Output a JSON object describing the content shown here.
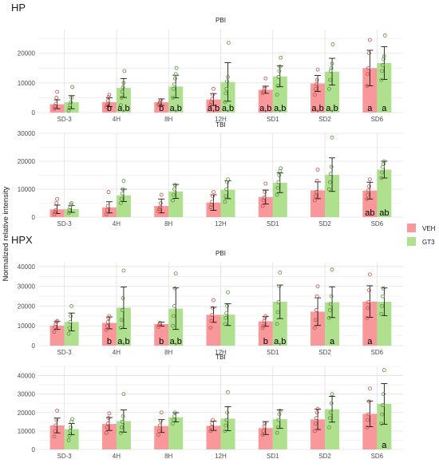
{
  "figure": {
    "ylabel": "Normalized relative intensity",
    "legend": {
      "placement": "right"
    }
  },
  "colors": {
    "VEH": "#f8989a",
    "GT3": "#aee08e"
  },
  "chart_data": [
    {
      "type": "bar",
      "group": "HP",
      "panel": "PBI",
      "categories": [
        "SD-3",
        "4H",
        "8H",
        "12H",
        "SD1",
        "SD2",
        "SD6"
      ],
      "ylim": [
        0,
        28000
      ],
      "yticks": [
        0,
        10000,
        20000
      ],
      "series": [
        {
          "name": "VEH",
          "values": [
            2800,
            3500,
            3500,
            4400,
            7700,
            9800,
            15000
          ],
          "err": [
            1500,
            1500,
            1100,
            2000,
            1200,
            2700,
            6000
          ],
          "points": [
            [
              1300,
              2200,
              3000,
              5000,
              7000
            ],
            [
              1800,
              2500,
              4000,
              5200,
              6000
            ],
            [
              2500,
              3000,
              3500,
              4200
            ],
            [
              2600,
              3500,
              4500,
              6000,
              8000
            ],
            [
              6500,
              7000,
              8000,
              8500,
              11500
            ],
            [
              6000,
              8000,
              9500,
              11000,
              14500
            ],
            [
              9000,
              13000,
              15000,
              20000,
              24500
            ]
          ]
        },
        {
          "name": "GT3",
          "values": [
            3500,
            8300,
            8800,
            10300,
            12200,
            13800,
            16700
          ],
          "err": [
            2200,
            3200,
            3800,
            6500,
            3500,
            4500,
            5500
          ],
          "points": [
            [
              600,
              1500,
              2500,
              3500,
              5000,
              8600
            ],
            [
              2500,
              5000,
              7000,
              8500,
              10000,
              14000
            ],
            [
              5000,
              8000,
              9500,
              11500,
              13000,
              15000
            ],
            [
              3500,
              6500,
              8000,
              10500,
              12000,
              23500
            ],
            [
              6000,
              9000,
              12000,
              14000,
              15500,
              18500
            ],
            [
              8000,
              11000,
              14000,
              15000,
              16500,
              23000
            ],
            [
              11000,
              14000,
              16000,
              18000,
              19000,
              26000
            ]
          ]
        }
      ],
      "labels": {
        "VEH": [
          "",
          "b",
          "b",
          "a,b",
          "a,b",
          "a,b",
          "a"
        ],
        "GT3": [
          "",
          "a,b",
          "a,b",
          "a,b",
          "a,b",
          "a,b",
          "a"
        ]
      }
    },
    {
      "type": "bar",
      "group": "HP",
      "panel": "TBI",
      "categories": [
        "SD-3",
        "4H",
        "8H",
        "12H",
        "SD1",
        "SD2",
        "SD6"
      ],
      "ylim": [
        0,
        30000
      ],
      "yticks": [
        0,
        10000,
        20000,
        30000
      ],
      "series": [
        {
          "name": "VEH",
          "values": [
            2800,
            3500,
            4000,
            5200,
            7200,
            9600,
            9500
          ],
          "err": [
            1500,
            2000,
            2500,
            2800,
            2500,
            3000,
            3000
          ],
          "points": [
            [
              1000,
              1800,
              2500,
              5000,
              6500
            ],
            [
              1000,
              2500,
              4000,
              9000
            ],
            [
              2000,
              2800,
              3500,
              5000,
              8000
            ],
            [
              3500,
              4500,
              5500,
              7500,
              9000
            ],
            [
              4000,
              6000,
              7000,
              9000,
              12000
            ],
            [
              6000,
              7500,
              9000,
              13000,
              17000
            ],
            [
              6500,
              8000,
              9500,
              11000,
              13500
            ]
          ]
        },
        {
          "name": "GT3",
          "values": [
            2900,
            7800,
            9200,
            9800,
            12300,
            15200,
            17000
          ],
          "err": [
            1200,
            2200,
            2500,
            3200,
            3500,
            6000,
            3000
          ],
          "points": [
            [
              1500,
              2500,
              3500,
              4500,
              5000
            ],
            [
              5000,
              6500,
              8500,
              10000,
              13000
            ],
            [
              6000,
              8000,
              10000,
              11500
            ],
            [
              5500,
              7500,
              10000,
              12500,
              13500
            ],
            [
              8000,
              10500,
              12500,
              15000,
              16500,
              17500
            ],
            [
              10000,
              12500,
              15500,
              18000,
              28500
            ],
            [
              14000,
              16000,
              18000,
              19000,
              20000
            ]
          ]
        }
      ],
      "labels": {
        "VEH": [
          "",
          "",
          "",
          "",
          "",
          "",
          "ab"
        ],
        "GT3": [
          "",
          "",
          "",
          "",
          "",
          "",
          "ab"
        ]
      }
    },
    {
      "type": "bar",
      "group": "HPX",
      "panel": "PBI",
      "categories": [
        "SD-3",
        "4H",
        "8H",
        "12H",
        "SD1",
        "SD2",
        "SD6"
      ],
      "ylim": [
        0,
        42000
      ],
      "yticks": [
        0,
        10000,
        20000,
        30000,
        40000
      ],
      "series": [
        {
          "name": "VEH",
          "values": [
            10200,
            11500,
            10900,
            15600,
            12300,
            17200,
            22300
          ],
          "err": [
            2000,
            3000,
            1000,
            3800,
            2500,
            7000,
            8000
          ],
          "points": [
            [
              7000,
              9500,
              11000,
              12000,
              12500
            ],
            [
              8000,
              10000,
              12000,
              14000,
              15000
            ],
            [
              9500,
              10500,
              11500
            ],
            [
              9000,
              12500,
              15500,
              19000,
              23000
            ],
            [
              9000,
              10000,
              12500,
              14000,
              15000
            ],
            [
              9000,
              13000,
              18000,
              25000,
              30000
            ],
            [
              14000,
              19000,
              22000,
              28000,
              36000
            ]
          ]
        },
        {
          "name": "GT3",
          "values": [
            12000,
            19200,
            18700,
            15700,
            22200,
            22000,
            22200
          ],
          "err": [
            4500,
            10500,
            10500,
            5500,
            8500,
            7800,
            7000
          ],
          "points": [
            [
              6000,
              9000,
              12000,
              15000,
              20000
            ],
            [
              9000,
              13000,
              18000,
              24000,
              38000
            ],
            [
              10000,
              15000,
              20000,
              29000,
              36500
            ],
            [
              11000,
              14000,
              16500,
              20000,
              27000
            ],
            [
              11000,
              17000,
              22000,
              30000,
              37000
            ],
            [
              14000,
              18000,
              21000,
              25000,
              38500
            ],
            [
              16000,
              20000,
              25000,
              29000
            ]
          ]
        }
      ],
      "labels": {
        "VEH": [
          "",
          "b",
          "b",
          "",
          "b",
          "",
          "a"
        ],
        "GT3": [
          "",
          "a,b",
          "a,b",
          "",
          "a,b",
          "a",
          ""
        ]
      }
    },
    {
      "type": "bar",
      "group": "HPX",
      "panel": "TBI",
      "categories": [
        "SD-3",
        "4H",
        "8H",
        "12H",
        "SD1",
        "SD2",
        "SD6"
      ],
      "ylim": [
        0,
        45000
      ],
      "yticks": [
        0,
        10000,
        20000,
        30000,
        40000
      ],
      "series": [
        {
          "name": "VEH",
          "values": [
            13000,
            13800,
            12700,
            12800,
            11600,
            16300,
            19300
          ],
          "err": [
            4000,
            3500,
            3500,
            2500,
            3500,
            5500,
            7000
          ],
          "points": [
            [
              7000,
              10000,
              13000,
              16000,
              21000
            ],
            [
              9000,
              12000,
              14000,
              17000,
              19500
            ],
            [
              8000,
              10000,
              13000,
              15500,
              20000
            ],
            [
              10000,
              12000,
              14000,
              16000
            ],
            [
              8000,
              10000,
              12500,
              14000
            ],
            [
              10000,
              14000,
              17000,
              20000,
              22000
            ],
            [
              12000,
              16000,
              19000,
              26000,
              33000
            ]
          ]
        },
        {
          "name": "GT3",
          "values": [
            11000,
            15400,
            17400,
            16700,
            16400,
            21800,
            24700
          ],
          "err": [
            3000,
            6000,
            2500,
            6500,
            5000,
            7000,
            11000
          ],
          "points": [
            [
              5000,
              7500,
              10000,
              12000,
              15000,
              16500
            ],
            [
              9000,
              12000,
              15000,
              18000,
              30000
            ],
            [
              14000,
              16000,
              18000,
              20000
            ],
            [
              10000,
              13000,
              16000,
              20000,
              31000
            ],
            [
              9000,
              12000,
              16000,
              19000,
              21000
            ],
            [
              12000,
              17000,
              20000,
              25000,
              30000
            ],
            [
              14000,
              19000,
              24000,
              30000,
              43000
            ]
          ]
        }
      ],
      "labels": {
        "VEH": [
          "",
          "",
          "",
          "",
          "",
          "",
          ""
        ],
        "GT3": [
          "",
          "",
          "",
          "",
          "",
          "",
          "a"
        ]
      }
    }
  ]
}
